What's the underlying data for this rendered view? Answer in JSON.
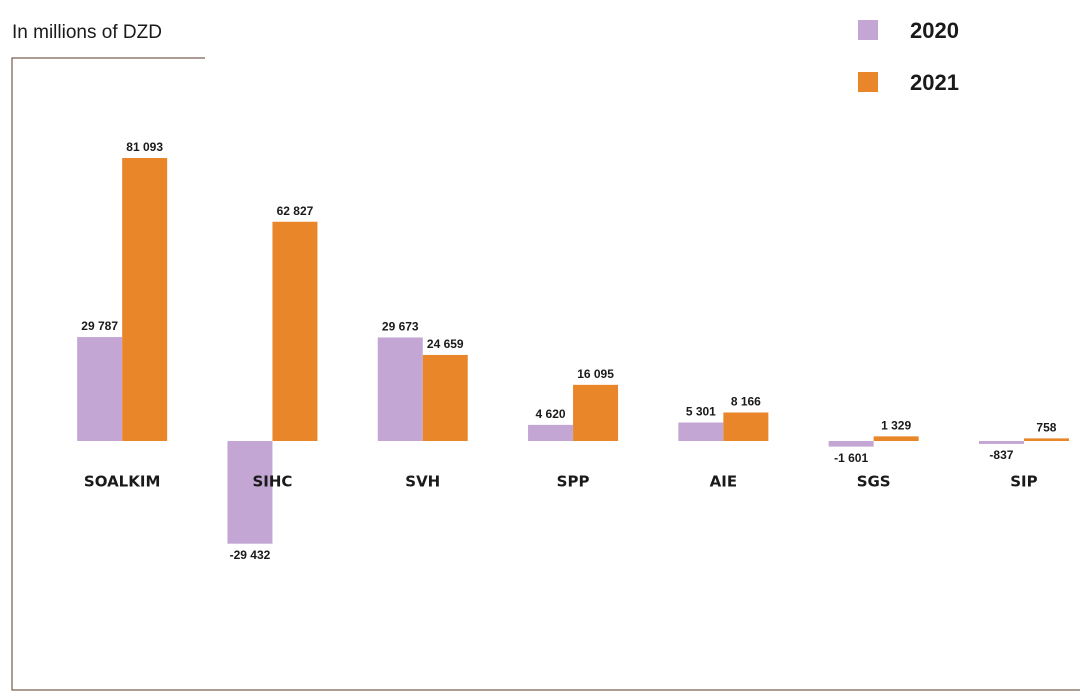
{
  "chart_data": {
    "type": "bar",
    "subtitle": "In millions of DZD",
    "categories": [
      "SOALKIM",
      "SIHC",
      "SVH",
      "SPP",
      "AIE",
      "SGS",
      "SIP"
    ],
    "series": [
      {
        "name": "2020",
        "color": "#c3a6d3",
        "values": [
          29787,
          -29432,
          29673,
          4620,
          5301,
          -1601,
          -837
        ],
        "value_labels": [
          "29 787",
          "-29 432",
          "29 673",
          "4 620",
          "5 301",
          "-1 601",
          "-837"
        ]
      },
      {
        "name": "2021",
        "color": "#ea862a",
        "values": [
          81093,
          62827,
          24659,
          16095,
          8166,
          1329,
          758
        ],
        "value_labels": [
          "81 093",
          "62 827",
          "24 659",
          "16 095",
          "8 166",
          "1 329",
          "758"
        ]
      }
    ],
    "legend": "top-right"
  }
}
